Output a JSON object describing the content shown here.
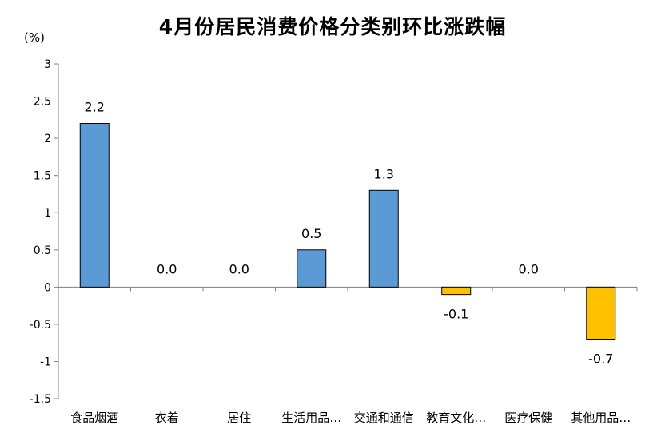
{
  "chart_data": {
    "type": "bar",
    "title": "4月份居民消费价格分类别环比涨跌幅",
    "unit": "(%)",
    "categories": [
      "食品烟酒",
      "衣着",
      "居住",
      "生活用品…",
      "交通和通信",
      "教育文化…",
      "医疗保健",
      "其他用品…"
    ],
    "values": [
      2.2,
      0.0,
      0.0,
      0.5,
      1.3,
      -0.1,
      0.0,
      -0.7
    ],
    "data_labels": [
      "2.2",
      "0.0",
      "0.0",
      "0.5",
      "1.3",
      "-0.1",
      "0.0",
      "-0.7"
    ],
    "ylim": [
      -1.5,
      3
    ],
    "yticks": [
      "3",
      "2.5",
      "2",
      "1.5",
      "1",
      "0.5",
      "0",
      "-0.5",
      "-1",
      "-1.5"
    ],
    "ytick_values": [
      3,
      2.5,
      2,
      1.5,
      1,
      0.5,
      0,
      -0.5,
      -1,
      -1.5
    ],
    "xlabel": "",
    "ylabel": "",
    "grid": false,
    "colors": {
      "positive": "#5B9BD5",
      "negative": "#FFC000",
      "axis": "#7f7f7f",
      "bar_border": "#000000"
    }
  }
}
